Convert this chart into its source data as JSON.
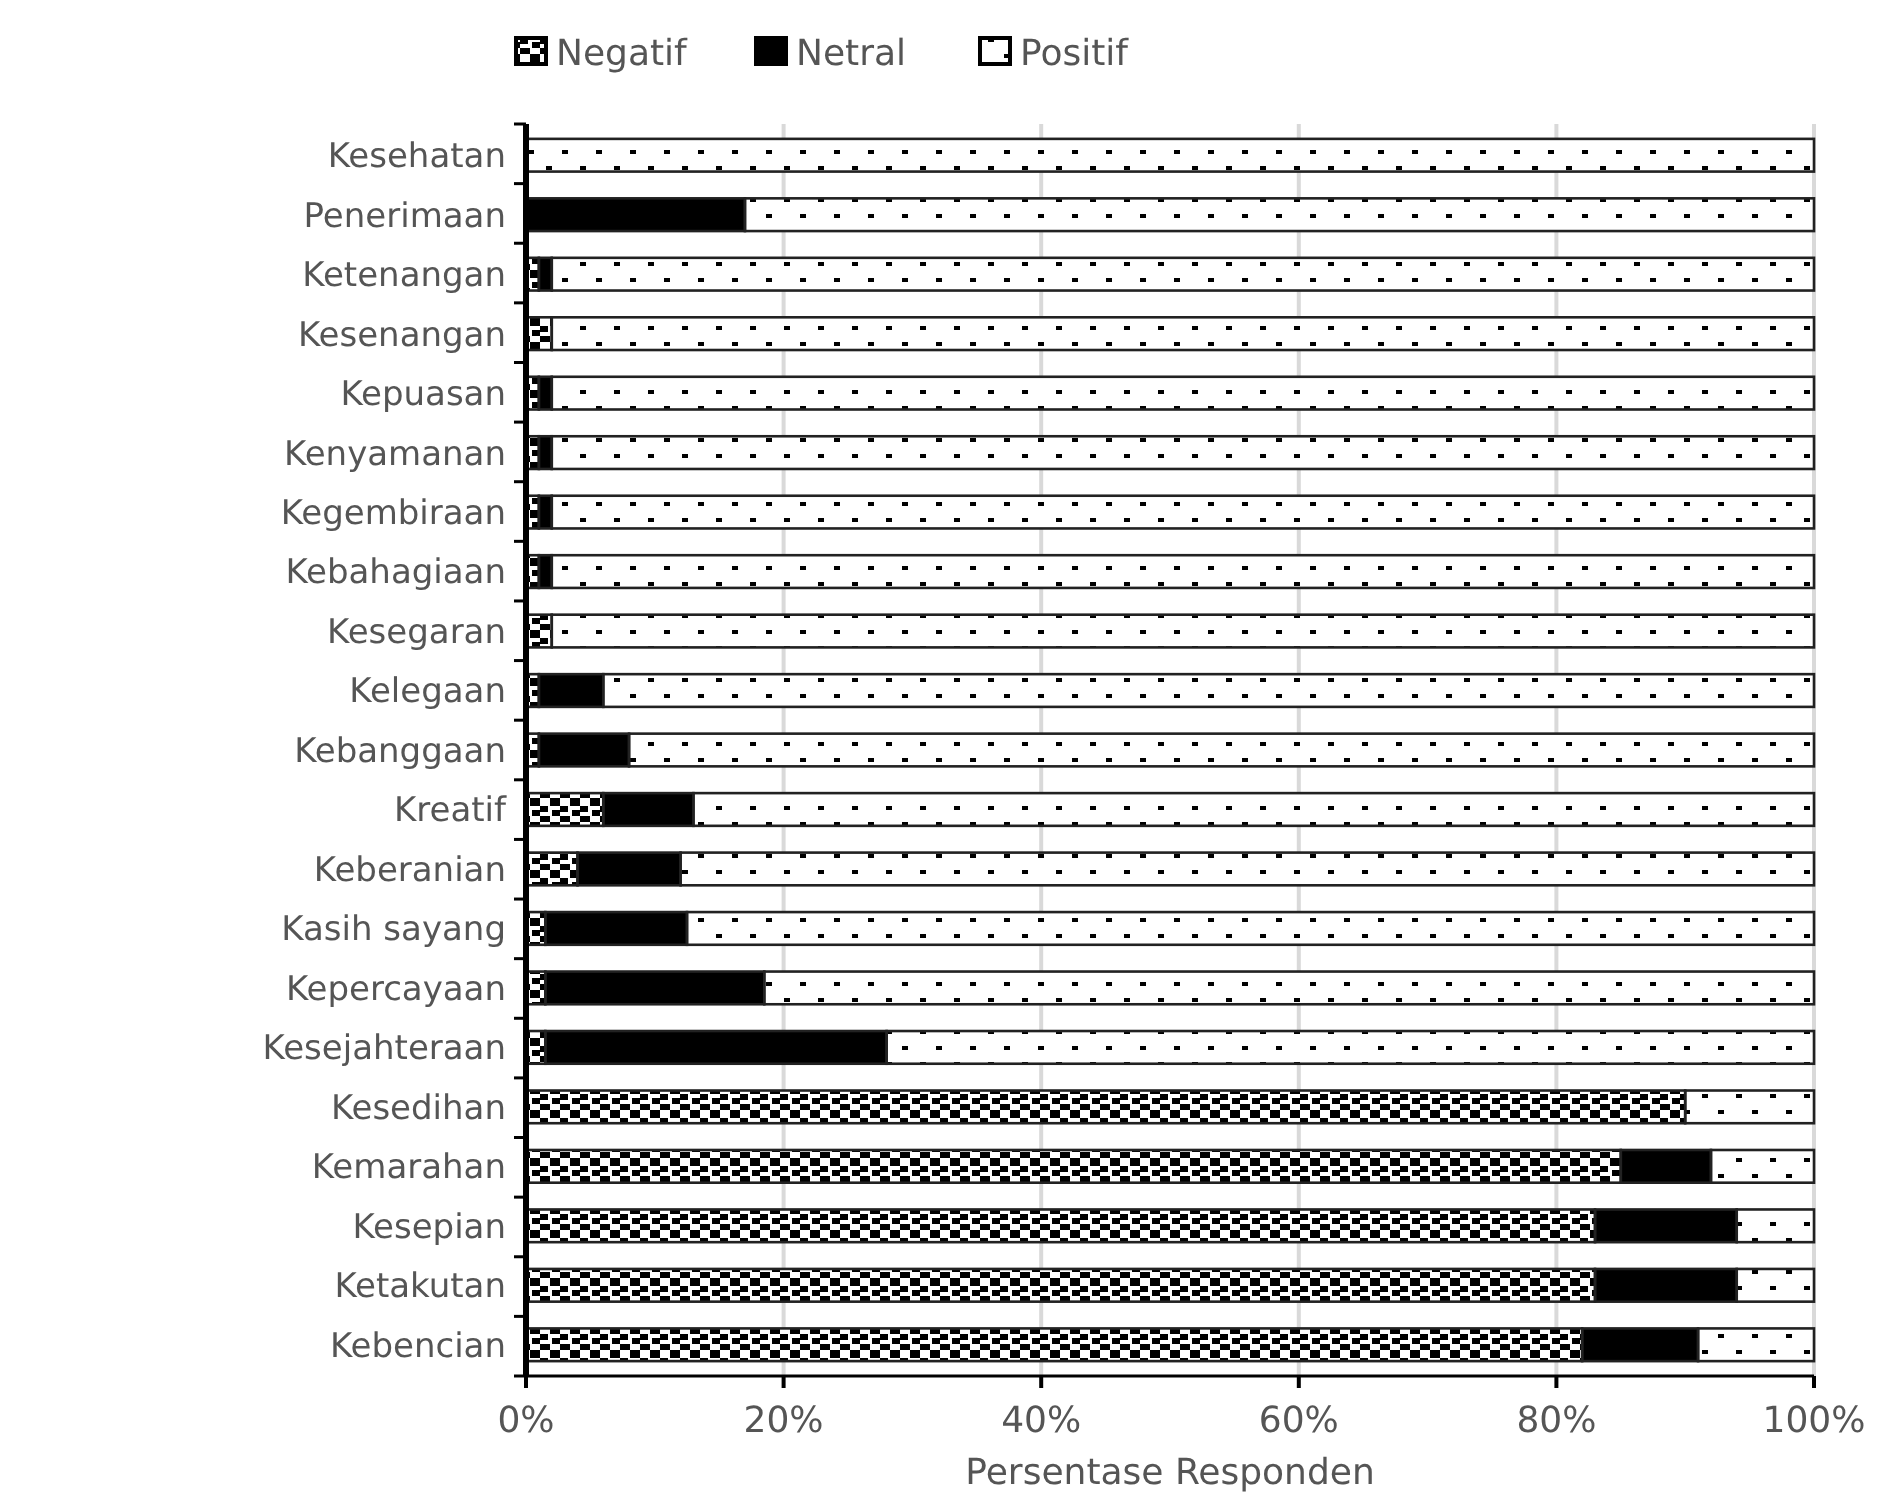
{
  "chart_data": {
    "type": "bar",
    "orientation": "horizontal",
    "stacked": true,
    "xlabel": "Persentase Responden",
    "categories": [
      "Kesehatan",
      "Penerimaan",
      "Ketenangan",
      "Kesenangan",
      "Kepuasan",
      "Kenyamanan",
      "Kegembiraan",
      "Kebahagiaan",
      "Kesegaran",
      "Kelegaan",
      "Kebanggaan",
      "Kreatif",
      "Keberanian",
      "Kasih sayang",
      "Kepercayaan",
      "Kesejahteraan",
      "Kesedihan",
      "Kemarahan",
      "Kesepian",
      "Ketakutan",
      "Kebencian"
    ],
    "series": [
      {
        "name": "Negatif",
        "color": "#000000",
        "values": [
          0,
          0,
          1,
          2,
          1,
          1,
          1,
          1,
          2,
          1,
          1,
          6,
          4,
          1.5,
          1.5,
          1.5,
          90,
          85,
          83,
          83,
          82
        ]
      },
      {
        "name": "Netral",
        "color": "#000000",
        "values": [
          0,
          17,
          1,
          0,
          1,
          1,
          1,
          1,
          0,
          5,
          7,
          7,
          8,
          11,
          17,
          26.5,
          0,
          7,
          11,
          11,
          9
        ]
      },
      {
        "name": "Positif",
        "color": "#ffffff",
        "values": [
          100,
          83,
          98,
          98,
          98,
          98,
          98,
          98,
          98,
          94,
          92,
          87,
          88,
          87.5,
          81.5,
          72,
          10,
          8,
          6,
          6,
          9
        ]
      }
    ],
    "xlim": [
      0,
      100
    ],
    "xticks": [
      {
        "value": 0,
        "label": "0%"
      },
      {
        "value": 20,
        "label": "20%"
      },
      {
        "value": 40,
        "label": "40%"
      },
      {
        "value": 60,
        "label": "60%"
      },
      {
        "value": 80,
        "label": "80%"
      },
      {
        "value": 100,
        "label": "100%"
      }
    ],
    "grid": "x",
    "legend": "top"
  }
}
